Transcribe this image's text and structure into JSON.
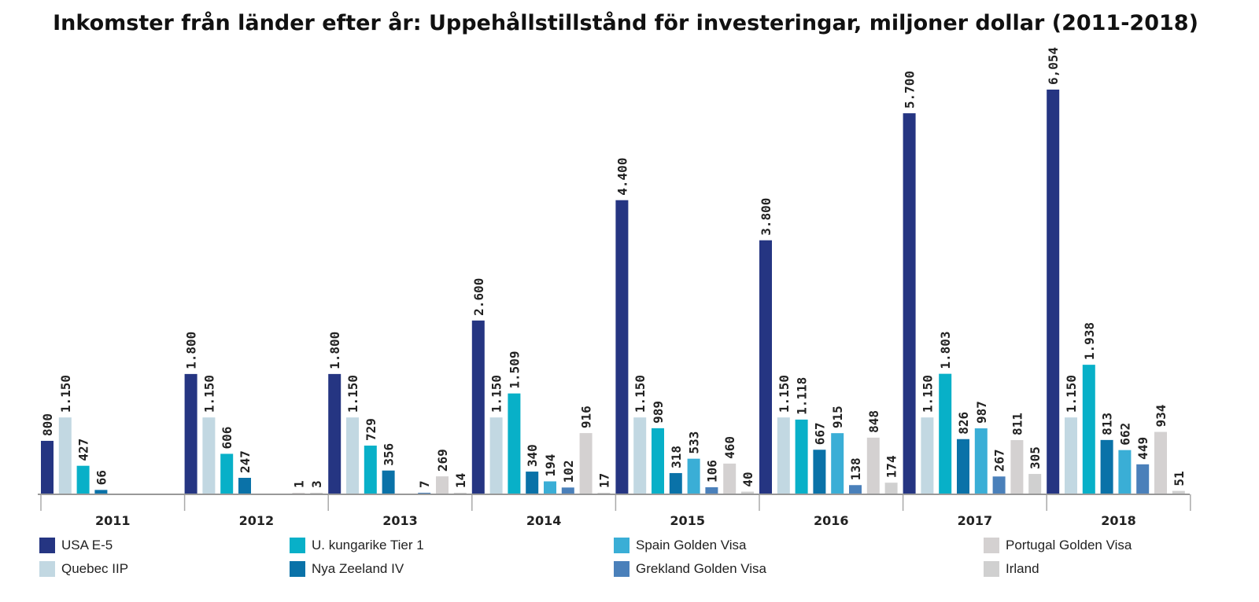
{
  "chart_data": {
    "type": "bar",
    "title": "Inkomster från länder efter år: Uppehållstillstånd för investeringar, miljoner dollar (2011-2018)",
    "xlabel": "",
    "ylabel": "",
    "ylim": [
      0,
      6100
    ],
    "grid": false,
    "legend_position": "bottom",
    "categories": [
      "2011",
      "2012",
      "2013",
      "2014",
      "2015",
      "2016",
      "2017",
      "2018"
    ],
    "series": [
      {
        "name": "USA E-5",
        "color": "#253582",
        "values": [
          800,
          1800,
          1800,
          2600,
          4400,
          3800,
          5700,
          6054
        ],
        "labels": [
          "800",
          "1.800",
          "1.800",
          "2.600",
          "4.400",
          "3.800",
          "5.700",
          "6,054"
        ]
      },
      {
        "name": "Quebec IIP",
        "color": "#c2d8e2",
        "values": [
          1150,
          1150,
          1150,
          1150,
          1150,
          1150,
          1150,
          1150
        ],
        "labels": [
          "1.150",
          "1.150",
          "1.150",
          "1.150",
          "1.150",
          "1.150",
          "1.150",
          "1.150"
        ]
      },
      {
        "name": "U. kungarike Tier 1",
        "color": "#08b0c8",
        "values": [
          427,
          606,
          729,
          1509,
          989,
          1118,
          1803,
          1938
        ],
        "labels": [
          "427",
          "606",
          "729",
          "1.509",
          "989",
          "1.118",
          "1.803",
          "1.938"
        ]
      },
      {
        "name": "Nya Zeeland IV",
        "color": "#0a72a8",
        "values": [
          66,
          247,
          356,
          340,
          318,
          667,
          826,
          813
        ],
        "labels": [
          "66",
          "247",
          "356",
          "340",
          "318",
          "667",
          "826",
          "813"
        ]
      },
      {
        "name": "Spain Golden Visa",
        "color": "#3aaed6",
        "values": [
          null,
          null,
          null,
          194,
          533,
          915,
          987,
          662
        ],
        "labels": [
          "",
          "",
          "",
          "194",
          "533",
          "915",
          "987",
          "662"
        ]
      },
      {
        "name": "Grekland Golden Visa",
        "color": "#4a80ba",
        "values": [
          null,
          null,
          7,
          102,
          106,
          138,
          267,
          449
        ],
        "labels": [
          "",
          "",
          "7",
          "102",
          "106",
          "138",
          "267",
          "449"
        ]
      },
      {
        "name": "Portugal Golden Visa",
        "color": "#d4d1d1",
        "values": [
          null,
          1,
          269,
          916,
          460,
          848,
          811,
          934
        ],
        "labels": [
          "",
          "1",
          "269",
          "916",
          "460",
          "848",
          "811",
          "934"
        ]
      },
      {
        "name": "Irland",
        "color": "#d0d0d0",
        "values": [
          null,
          3,
          14,
          17,
          40,
          174,
          305,
          51
        ],
        "labels": [
          "",
          "3",
          "14",
          "17",
          "40",
          "174",
          "305",
          "51"
        ]
      }
    ]
  }
}
